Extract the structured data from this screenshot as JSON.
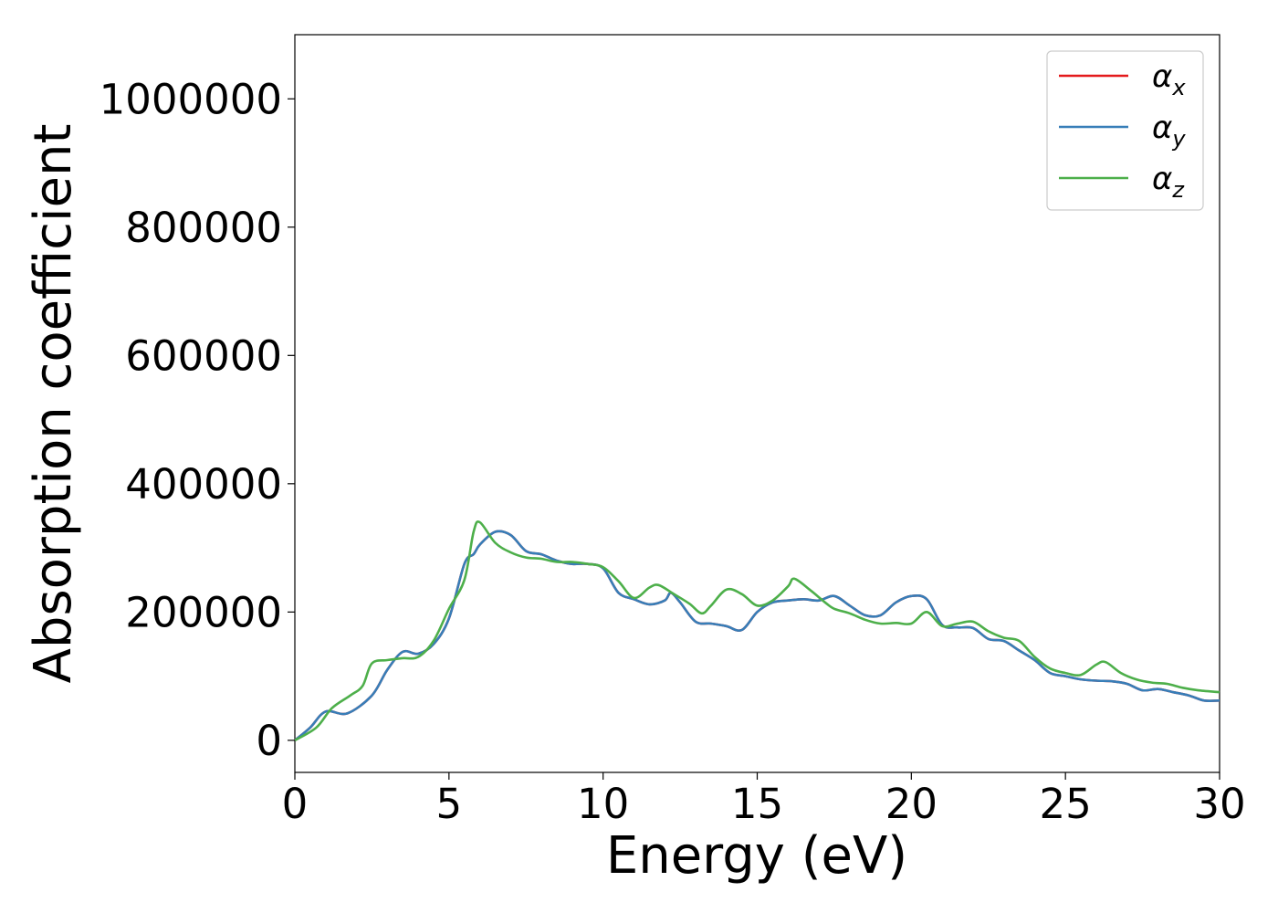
{
  "chart_data": {
    "type": "line",
    "xlabel": "Energy (eV)",
    "ylabel": "Absorption coefficient",
    "xlim": [
      0,
      30
    ],
    "ylim": [
      -50000,
      1100000
    ],
    "xticks": [
      0,
      5,
      10,
      15,
      20,
      25,
      30
    ],
    "xtick_labels": [
      "0",
      "5",
      "10",
      "15",
      "20",
      "25",
      "30"
    ],
    "yticks": [
      0,
      200000,
      400000,
      600000,
      800000,
      1000000
    ],
    "ytick_labels": [
      "0",
      "200000",
      "400000",
      "600000",
      "800000",
      "1000000"
    ],
    "grid": false,
    "legend_position": "top-right",
    "series": [
      {
        "name": "αx",
        "legend_symbol": "α",
        "legend_sub": "x",
        "color": "#e41a1c",
        "x": [
          0,
          0.5,
          1,
          1.7,
          2.5,
          3,
          3.5,
          4,
          4.5,
          5,
          5.5,
          5.8,
          6,
          6.5,
          7,
          7.5,
          8,
          8.5,
          9,
          9.5,
          10,
          10.5,
          11,
          11.5,
          12,
          12.2,
          12.5,
          13,
          13.5,
          14,
          14.5,
          15,
          15.5,
          16,
          16.5,
          17,
          17.5,
          18,
          18.5,
          19,
          19.5,
          20,
          20.5,
          21,
          21.5,
          22,
          22.5,
          23,
          23.5,
          24,
          24.5,
          25,
          25.5,
          26,
          26.5,
          27,
          27.5,
          28,
          28.5,
          29,
          29.5,
          30
        ],
        "y": [
          0,
          20000,
          45000,
          42000,
          70000,
          110000,
          138000,
          135000,
          150000,
          190000,
          275000,
          290000,
          305000,
          325000,
          320000,
          295000,
          290000,
          280000,
          275000,
          275000,
          268000,
          230000,
          220000,
          212000,
          218000,
          230000,
          215000,
          185000,
          182000,
          178000,
          172000,
          200000,
          215000,
          218000,
          220000,
          218000,
          225000,
          210000,
          195000,
          195000,
          215000,
          225000,
          220000,
          180000,
          176000,
          175000,
          158000,
          155000,
          140000,
          125000,
          105000,
          100000,
          95000,
          93000,
          92000,
          88000,
          78000,
          80000,
          75000,
          70000,
          62000,
          62000
        ]
      },
      {
        "name": "αy",
        "legend_symbol": "α",
        "legend_sub": "y",
        "color": "#377eb8",
        "x": [
          0,
          0.5,
          1,
          1.7,
          2.5,
          3,
          3.5,
          4,
          4.5,
          5,
          5.5,
          5.8,
          6,
          6.5,
          7,
          7.5,
          8,
          8.5,
          9,
          9.5,
          10,
          10.5,
          11,
          11.5,
          12,
          12.2,
          12.5,
          13,
          13.5,
          14,
          14.5,
          15,
          15.5,
          16,
          16.5,
          17,
          17.5,
          18,
          18.5,
          19,
          19.5,
          20,
          20.5,
          21,
          21.5,
          22,
          22.5,
          23,
          23.5,
          24,
          24.5,
          25,
          25.5,
          26,
          26.5,
          27,
          27.5,
          28,
          28.5,
          29,
          29.5,
          30
        ],
        "y": [
          0,
          20000,
          45000,
          42000,
          70000,
          110000,
          138000,
          135000,
          150000,
          190000,
          275000,
          290000,
          305000,
          325000,
          320000,
          295000,
          290000,
          280000,
          275000,
          275000,
          268000,
          230000,
          220000,
          212000,
          218000,
          230000,
          215000,
          185000,
          182000,
          178000,
          172000,
          200000,
          215000,
          218000,
          220000,
          218000,
          225000,
          210000,
          195000,
          195000,
          215000,
          225000,
          220000,
          180000,
          176000,
          175000,
          158000,
          155000,
          140000,
          125000,
          105000,
          100000,
          95000,
          93000,
          92000,
          88000,
          78000,
          80000,
          75000,
          70000,
          62000,
          62000
        ]
      },
      {
        "name": "αz",
        "legend_symbol": "α",
        "legend_sub": "z",
        "color": "#4daf4a",
        "x": [
          0,
          0.7,
          1.2,
          1.8,
          2.2,
          2.5,
          3,
          3.5,
          4,
          4.5,
          5,
          5.5,
          5.8,
          6,
          6.5,
          7,
          7.5,
          8,
          8.5,
          9,
          9.5,
          10,
          10.5,
          11,
          11.5,
          11.8,
          12.3,
          12.8,
          13.2,
          13.5,
          14,
          14.5,
          15,
          15.5,
          16,
          16.2,
          16.7,
          17.2,
          17.5,
          18,
          18.5,
          19,
          19.5,
          20,
          20.5,
          21,
          21.5,
          22,
          22.5,
          23,
          23.5,
          24,
          24.5,
          25,
          25.5,
          26,
          26.3,
          26.8,
          27.3,
          27.8,
          28.3,
          28.8,
          29.3,
          30
        ],
        "y": [
          0,
          20000,
          50000,
          70000,
          85000,
          120000,
          125000,
          128000,
          130000,
          155000,
          205000,
          250000,
          325000,
          340000,
          308000,
          293000,
          285000,
          283000,
          278000,
          278000,
          275000,
          270000,
          248000,
          222000,
          238000,
          242000,
          228000,
          213000,
          198000,
          210000,
          235000,
          228000,
          210000,
          218000,
          240000,
          252000,
          235000,
          215000,
          205000,
          198000,
          188000,
          182000,
          183000,
          182000,
          200000,
          178000,
          182000,
          185000,
          170000,
          160000,
          155000,
          130000,
          112000,
          105000,
          102000,
          118000,
          122000,
          105000,
          95000,
          90000,
          88000,
          82000,
          78000,
          75000
        ]
      }
    ]
  }
}
